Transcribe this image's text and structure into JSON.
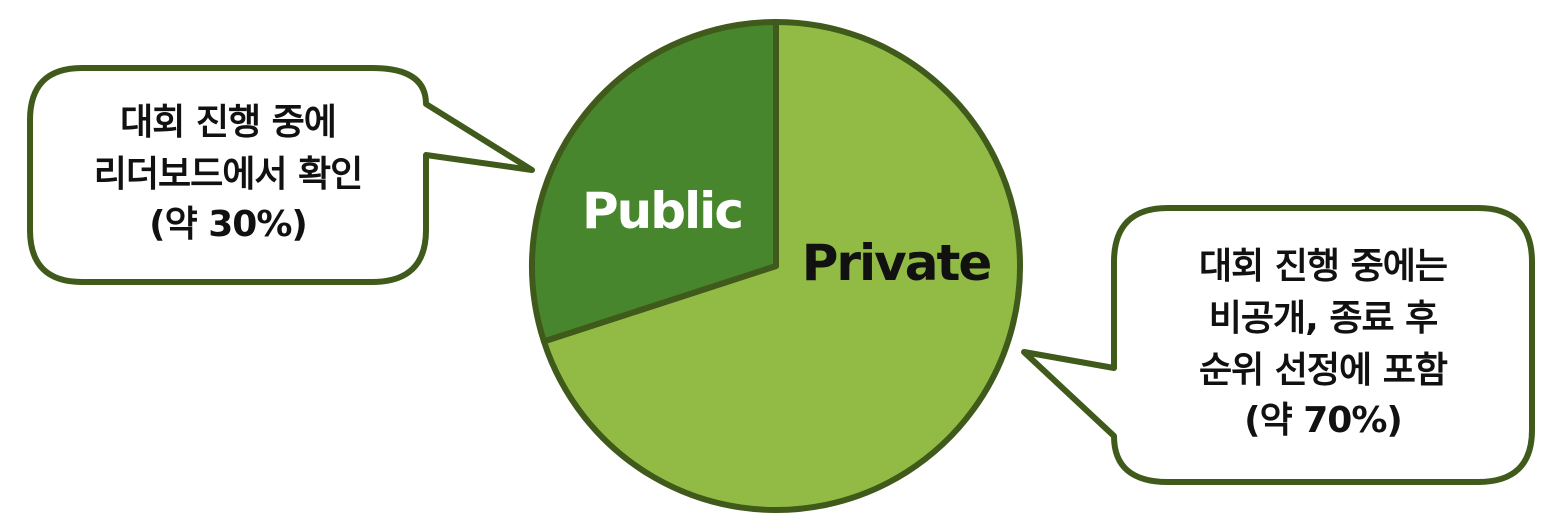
{
  "chart_data": {
    "type": "pie",
    "title": "",
    "slices": [
      {
        "label": "Public",
        "value": 30,
        "color": "#47862c",
        "label_color": "#ffffff"
      },
      {
        "label": "Private",
        "value": 70,
        "color": "#92bb45",
        "label_color": "#111111"
      }
    ],
    "outline_color": "#3f5a1a"
  },
  "callouts": {
    "public": {
      "lines": [
        "대회 진행 중에",
        "리더보드에서 확인",
        "(약 30%)"
      ]
    },
    "private": {
      "lines": [
        "대회 진행 중에는",
        "비공개, 종료 후",
        "순위 선정에 포함",
        "(약 70%)"
      ]
    }
  }
}
